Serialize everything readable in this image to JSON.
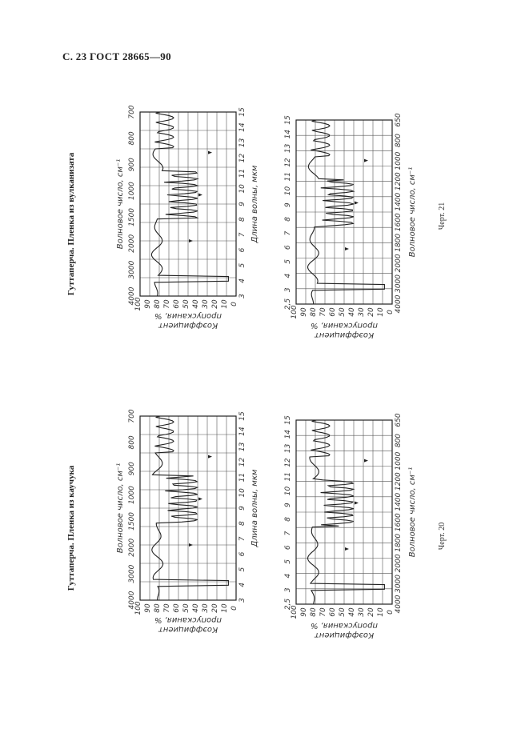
{
  "header": "С. 23 ГОСТ 28665—90",
  "groups": [
    {
      "caption": "Гуттаперча. Пленка из каучука",
      "figure": "Черт. 20",
      "upper": {
        "wavenumbers": [
          "4000",
          "3000",
          "2000",
          "1500",
          "1000",
          "900",
          "800",
          "700"
        ],
        "wavelengths": [
          "3",
          "4",
          "5",
          "6",
          "7",
          "8",
          "9",
          "10",
          "11",
          "12",
          "13",
          "14",
          "15"
        ],
        "transmission": [
          "100",
          "90",
          "80",
          "70",
          "60",
          "50",
          "40",
          "30",
          "20",
          "10",
          "0"
        ]
      },
      "lower": {
        "wavelengths": [
          "2,5",
          "3",
          "4",
          "5",
          "6",
          "7",
          "8",
          "9",
          "10",
          "11",
          "12",
          "13",
          "14",
          "15"
        ],
        "wavenumbers": [
          "4000",
          "3000",
          "2000",
          "1800",
          "1600",
          "1400",
          "1200",
          "1000",
          "800",
          "650"
        ],
        "transmission": [
          "100",
          "90",
          "80",
          "70",
          "60",
          "50",
          "40",
          "30",
          "20",
          "10",
          "0"
        ]
      }
    },
    {
      "caption": "Гуттаперча. Пленка из вулканизата",
      "figure": "Черт. 21",
      "upper": {
        "wavenumbers": [
          "4000",
          "3000",
          "2000",
          "1500",
          "1000",
          "900",
          "800",
          "700"
        ],
        "wavelengths": [
          "3",
          "4",
          "5",
          "6",
          "7",
          "8",
          "9",
          "10",
          "11",
          "12",
          "13",
          "14",
          "15"
        ],
        "transmission": [
          "100",
          "90",
          "80",
          "70",
          "60",
          "50",
          "40",
          "30",
          "20",
          "10",
          "0"
        ]
      },
      "lower": {
        "wavelengths": [
          "2,5",
          "3",
          "4",
          "5",
          "6",
          "7",
          "8",
          "9",
          "10",
          "11",
          "12",
          "13",
          "14",
          "15"
        ],
        "wavenumbers": [
          "4000",
          "3000",
          "2000",
          "1800",
          "1600",
          "1400",
          "1200",
          "1000",
          "800",
          "650"
        ],
        "transmission": [
          "100",
          "90",
          "80",
          "70",
          "60",
          "50",
          "40",
          "30",
          "20",
          "10",
          "0"
        ]
      }
    }
  ],
  "axis_labels": {
    "wavenumber": "Волновое число, см⁻¹",
    "wavelength_line1": "Длина волны, мкм",
    "transmission_line1": "Коэффициент",
    "transmission_line2": "пропускания, %"
  }
}
